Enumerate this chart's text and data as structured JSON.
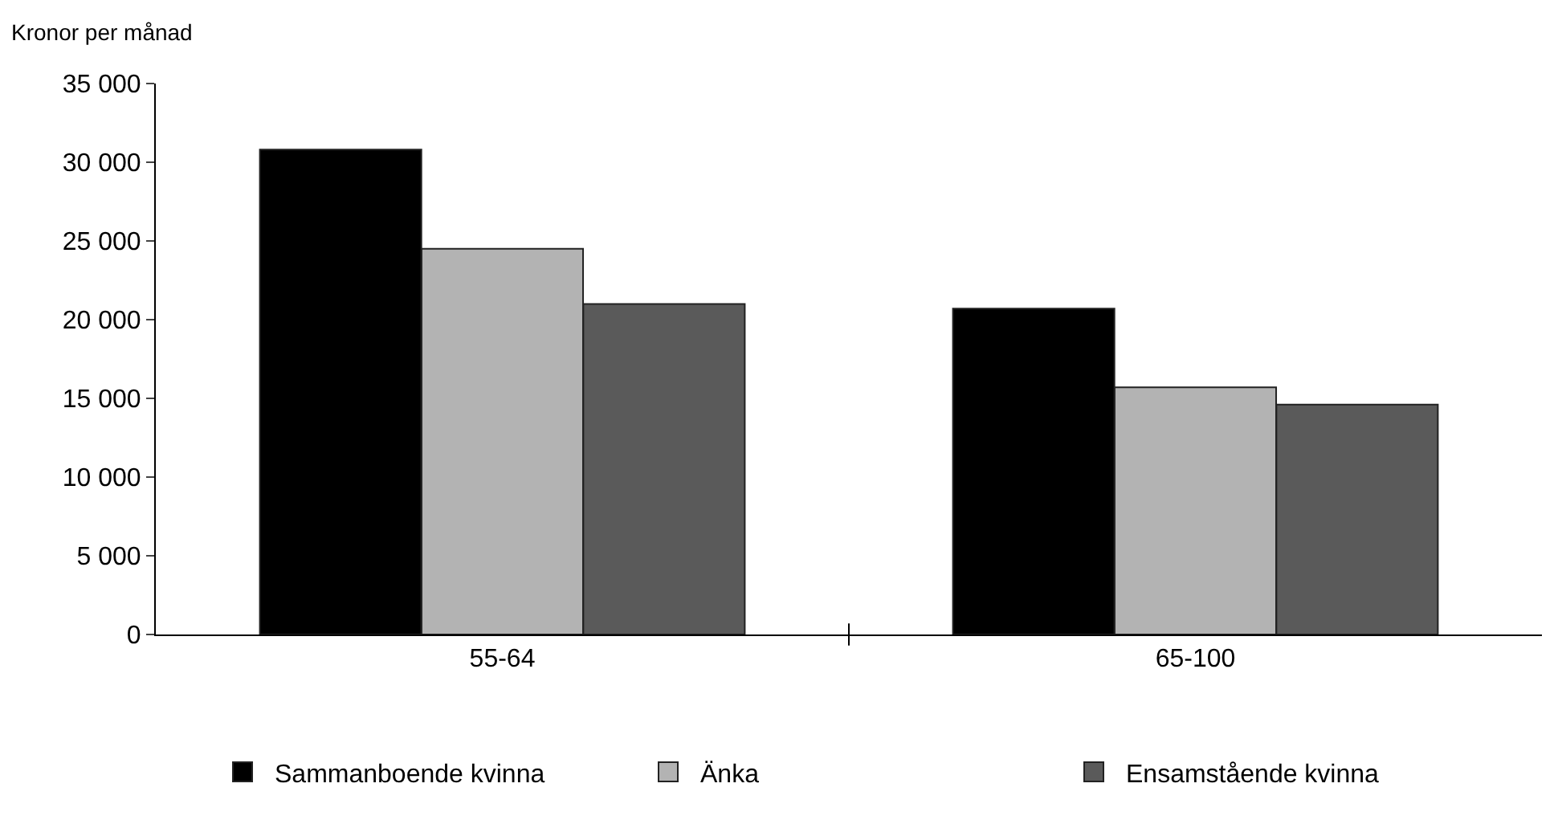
{
  "chart_data": {
    "type": "bar",
    "ylabel": "Kronor per månad",
    "categories": [
      "55-64",
      "65-100"
    ],
    "series": [
      {
        "name": "Sammanboende kvinna",
        "color": "#000000",
        "values": [
          30800,
          20700
        ]
      },
      {
        "name": "Änka",
        "color": "#b3b3b3",
        "values": [
          24500,
          15700
        ]
      },
      {
        "name": "Ensamstående kvinna",
        "color": "#5a5a5a",
        "values": [
          21000,
          14600
        ]
      }
    ],
    "ylim": [
      0,
      35000
    ],
    "yticks": [
      {
        "value": 0,
        "label": "0"
      },
      {
        "value": 5000,
        "label": "5 000"
      },
      {
        "value": 10000,
        "label": "10 000"
      },
      {
        "value": 15000,
        "label": "15 000"
      },
      {
        "value": 20000,
        "label": "20 000"
      },
      {
        "value": 25000,
        "label": "25 000"
      },
      {
        "value": 30000,
        "label": "30 000"
      },
      {
        "value": 35000,
        "label": "35 000"
      }
    ],
    "legend": "bottom"
  }
}
